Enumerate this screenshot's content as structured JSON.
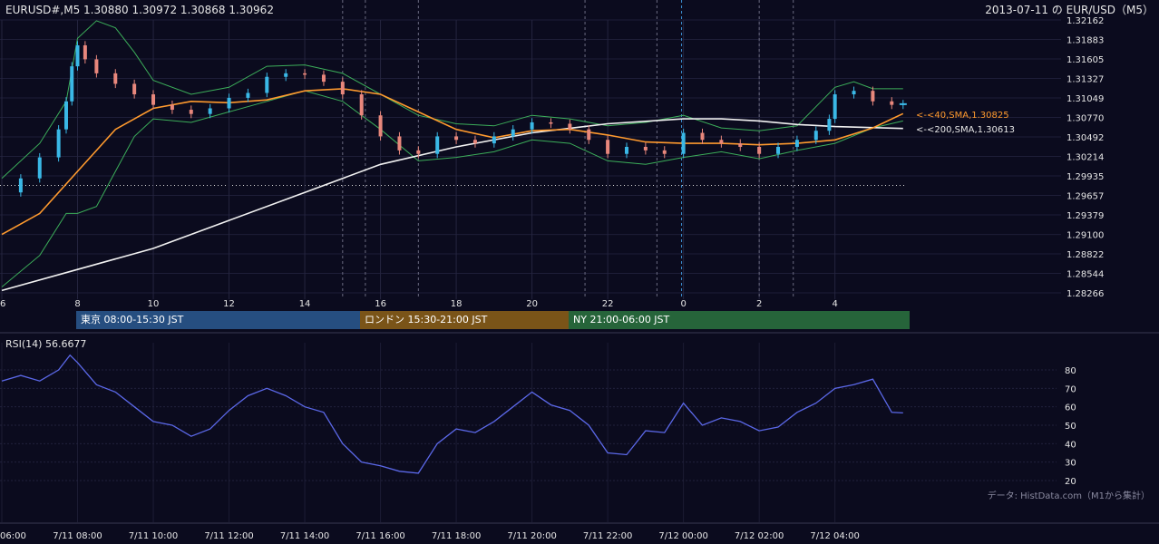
{
  "header": {
    "symbol_info": "EURUSD#,M5 1.30880 1.30972 1.30868 1.30962",
    "right_title": "2013-07-11 の EUR/USD（M5）"
  },
  "main_chart": {
    "y_ticks": [
      "1.32162",
      "1.31883",
      "1.31605",
      "1.31327",
      "1.31049",
      "1.30770",
      "1.30492",
      "1.30214",
      "1.29935",
      "1.29657",
      "1.29379",
      "1.29100",
      "1.28822",
      "1.28544",
      "1.28266"
    ],
    "x_ticks": [
      "6",
      "8",
      "10",
      "12",
      "14",
      "16",
      "18",
      "20",
      "22",
      "0",
      "2",
      "4"
    ],
    "sma40_label": "<-<40,SMA,1.30825",
    "sma200_label": "<-<200,SMA,1.30613",
    "colors": {
      "background": "#0b0b1e",
      "sma40": "#ff9a2e",
      "sma200": "#f2f2f2",
      "bands": "#3cae5a",
      "candle_up": "#3ab8e6",
      "candle_down": "#e8877c",
      "rsi": "#5b68e8"
    }
  },
  "sessions": [
    {
      "label": "東京 08:00-15:30 JST",
      "color": "#264e80"
    },
    {
      "label": "ロンドン 15:30-21:00 JST",
      "color": "#7a5418"
    },
    {
      "label": "NY 21:00-06:00 JST",
      "color": "#26643a"
    }
  ],
  "rsi_panel": {
    "title": "RSI(14) 56.6677",
    "y_ticks": [
      "80",
      "70",
      "60",
      "50",
      "40",
      "30",
      "20"
    ],
    "attribution": "データ: HistData.com（M1から集計）"
  },
  "time_axis": [
    "06:00",
    "7/11 08:00",
    "7/11 10:00",
    "7/11 12:00",
    "7/11 14:00",
    "7/11 16:00",
    "7/11 18:00",
    "7/11 20:00",
    "7/11 22:00",
    "7/12 00:00",
    "7/12 02:00",
    "7/12 04:00"
  ],
  "chart_data": [
    {
      "type": "candlestick",
      "title": "EURUSD#,M5",
      "x_unit": "hour (JST)",
      "ylim": [
        1.28266,
        1.32162
      ],
      "reference_level": 1.298,
      "price": [
        [
          6,
          1.297
        ],
        [
          6.5,
          1.299
        ],
        [
          7,
          1.302
        ],
        [
          7.5,
          1.306
        ],
        [
          7.7,
          1.31
        ],
        [
          7.85,
          1.315
        ],
        [
          8,
          1.318
        ],
        [
          8.2,
          1.316
        ],
        [
          8.5,
          1.314
        ],
        [
          9,
          1.3125
        ],
        [
          9.5,
          1.311
        ],
        [
          10,
          1.3095
        ],
        [
          10.5,
          1.3088
        ],
        [
          11,
          1.3082
        ],
        [
          11.5,
          1.309
        ],
        [
          12,
          1.3105
        ],
        [
          12.5,
          1.3112
        ],
        [
          13,
          1.3135
        ],
        [
          13.5,
          1.314
        ],
        [
          14,
          1.3138
        ],
        [
          14.5,
          1.3128
        ],
        [
          15,
          1.311
        ],
        [
          15.5,
          1.308
        ],
        [
          16,
          1.305
        ],
        [
          16.5,
          1.303
        ],
        [
          17,
          1.3025
        ],
        [
          17.5,
          1.305
        ],
        [
          18,
          1.3045
        ],
        [
          18.5,
          1.304
        ],
        [
          19,
          1.305
        ],
        [
          19.5,
          1.306
        ],
        [
          20,
          1.307
        ],
        [
          20.5,
          1.3068
        ],
        [
          21,
          1.306
        ],
        [
          21.5,
          1.3045
        ],
        [
          22,
          1.3025
        ],
        [
          22.5,
          1.3035
        ],
        [
          23,
          1.303
        ],
        [
          23.5,
          1.3025
        ],
        [
          24,
          1.3055
        ],
        [
          24.5,
          1.3045
        ],
        [
          25,
          1.304
        ],
        [
          25.5,
          1.3035
        ],
        [
          26,
          1.3025
        ],
        [
          26.5,
          1.3035
        ],
        [
          27,
          1.3045
        ],
        [
          27.5,
          1.3058
        ],
        [
          27.85,
          1.3075
        ],
        [
          28,
          1.311
        ],
        [
          28.5,
          1.3115
        ],
        [
          29,
          1.31
        ],
        [
          29.5,
          1.3095
        ],
        [
          29.8,
          1.3096
        ]
      ],
      "sma40": [
        [
          6,
          1.291
        ],
        [
          7,
          1.294
        ],
        [
          8,
          1.3
        ],
        [
          9,
          1.306
        ],
        [
          10,
          1.309
        ],
        [
          11,
          1.31
        ],
        [
          12,
          1.3098
        ],
        [
          13,
          1.3102
        ],
        [
          14,
          1.3115
        ],
        [
          15,
          1.3118
        ],
        [
          16,
          1.311
        ],
        [
          17,
          1.3085
        ],
        [
          18,
          1.306
        ],
        [
          19,
          1.3048
        ],
        [
          20,
          1.3058
        ],
        [
          21,
          1.306
        ],
        [
          22,
          1.3052
        ],
        [
          23,
          1.3042
        ],
        [
          24,
          1.304
        ],
        [
          25,
          1.304
        ],
        [
          26,
          1.3038
        ],
        [
          27,
          1.304
        ],
        [
          28,
          1.3045
        ],
        [
          29,
          1.3062
        ],
        [
          29.8,
          1.30825
        ]
      ],
      "sma200": [
        [
          6,
          1.283
        ],
        [
          8,
          1.286
        ],
        [
          10,
          1.289
        ],
        [
          12,
          1.293
        ],
        [
          14,
          1.297
        ],
        [
          16,
          1.301
        ],
        [
          18,
          1.3035
        ],
        [
          20,
          1.3055
        ],
        [
          22,
          1.3068
        ],
        [
          24,
          1.3075
        ],
        [
          25,
          1.3075
        ],
        [
          26,
          1.3072
        ],
        [
          27,
          1.3067
        ],
        [
          28,
          1.3064
        ],
        [
          29.8,
          1.30613
        ]
      ],
      "upper_band": [
        [
          6,
          1.299
        ],
        [
          7,
          1.304
        ],
        [
          7.7,
          1.31
        ],
        [
          8,
          1.319
        ],
        [
          8.5,
          1.3215
        ],
        [
          9,
          1.3205
        ],
        [
          9.5,
          1.317
        ],
        [
          10,
          1.313
        ],
        [
          11,
          1.311
        ],
        [
          12,
          1.312
        ],
        [
          13,
          1.315
        ],
        [
          14,
          1.3152
        ],
        [
          15,
          1.314
        ],
        [
          16,
          1.311
        ],
        [
          17,
          1.308
        ],
        [
          18,
          1.3068
        ],
        [
          19,
          1.3065
        ],
        [
          20,
          1.308
        ],
        [
          21,
          1.3075
        ],
        [
          22,
          1.3065
        ],
        [
          23,
          1.307
        ],
        [
          24,
          1.308
        ],
        [
          25,
          1.3062
        ],
        [
          26,
          1.3058
        ],
        [
          27,
          1.3065
        ],
        [
          28,
          1.312
        ],
        [
          28.5,
          1.3128
        ],
        [
          29,
          1.3118
        ],
        [
          29.8,
          1.3118
        ]
      ],
      "lower_band": [
        [
          6,
          1.2835
        ],
        [
          7,
          1.288
        ],
        [
          7.7,
          1.294
        ],
        [
          8,
          1.294
        ],
        [
          8.5,
          1.295
        ],
        [
          9,
          1.3
        ],
        [
          9.5,
          1.305
        ],
        [
          10,
          1.3075
        ],
        [
          11,
          1.307
        ],
        [
          12,
          1.3085
        ],
        [
          13,
          1.31
        ],
        [
          14,
          1.3115
        ],
        [
          15,
          1.31
        ],
        [
          16,
          1.306
        ],
        [
          17,
          1.3015
        ],
        [
          18,
          1.302
        ],
        [
          19,
          1.3028
        ],
        [
          20,
          1.3045
        ],
        [
          21,
          1.304
        ],
        [
          22,
          1.3015
        ],
        [
          23,
          1.301
        ],
        [
          24,
          1.302
        ],
        [
          25,
          1.3028
        ],
        [
          26,
          1.3018
        ],
        [
          27,
          1.303
        ],
        [
          28,
          1.304
        ],
        [
          29,
          1.3062
        ],
        [
          29.8,
          1.3072
        ]
      ]
    },
    {
      "type": "line",
      "title": "RSI(14) 56.6677",
      "ylim": [
        20,
        90
      ],
      "series": [
        {
          "name": "RSI(14)",
          "values": [
            [
              6,
              74
            ],
            [
              6.5,
              77
            ],
            [
              7,
              74
            ],
            [
              7.5,
              80
            ],
            [
              7.8,
              88
            ],
            [
              8,
              84
            ],
            [
              8.5,
              72
            ],
            [
              9,
              68
            ],
            [
              9.5,
              60
            ],
            [
              10,
              52
            ],
            [
              10.5,
              50
            ],
            [
              11,
              44
            ],
            [
              11.5,
              48
            ],
            [
              12,
              58
            ],
            [
              12.5,
              66
            ],
            [
              13,
              70
            ],
            [
              13.5,
              66
            ],
            [
              14,
              60
            ],
            [
              14.5,
              57
            ],
            [
              15,
              40
            ],
            [
              15.5,
              30
            ],
            [
              16,
              28
            ],
            [
              16.5,
              25
            ],
            [
              17,
              24
            ],
            [
              17.5,
              40
            ],
            [
              18,
              48
            ],
            [
              18.5,
              46
            ],
            [
              19,
              52
            ],
            [
              19.5,
              60
            ],
            [
              20,
              68
            ],
            [
              20.5,
              61
            ],
            [
              21,
              58
            ],
            [
              21.5,
              50
            ],
            [
              22,
              35
            ],
            [
              22.5,
              34
            ],
            [
              23,
              47
            ],
            [
              23.5,
              46
            ],
            [
              24,
              62
            ],
            [
              24.5,
              50
            ],
            [
              25,
              54
            ],
            [
              25.5,
              52
            ],
            [
              26,
              47
            ],
            [
              26.5,
              49
            ],
            [
              27,
              57
            ],
            [
              27.5,
              62
            ],
            [
              28,
              70
            ],
            [
              28.5,
              72
            ],
            [
              29,
              75
            ],
            [
              29.5,
              57
            ],
            [
              29.8,
              56.7
            ]
          ]
        }
      ]
    }
  ]
}
